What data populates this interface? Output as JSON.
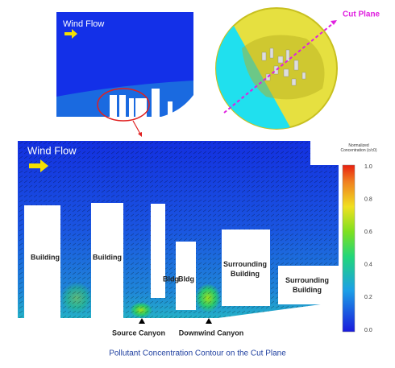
{
  "inset_left": {
    "label": "Wind Flow"
  },
  "inset_right": {
    "label": "Cut Plane"
  },
  "main": {
    "wind_label": "Wind Flow",
    "buildings": [
      "Building",
      "Building",
      "Bldg",
      "Bldg",
      "Surrounding Building",
      "Surrounding Building"
    ],
    "canyons": [
      "Source Canyon",
      "Downwind Canyon"
    ]
  },
  "colorbar": {
    "title": "Normalized Concentration (c/c0)",
    "ticks": [
      "1.0",
      "0.8",
      "0.6",
      "0.4",
      "0.2",
      "0.0"
    ]
  },
  "caption": "Pollutant Concentration Contour on the Cut Plane"
}
